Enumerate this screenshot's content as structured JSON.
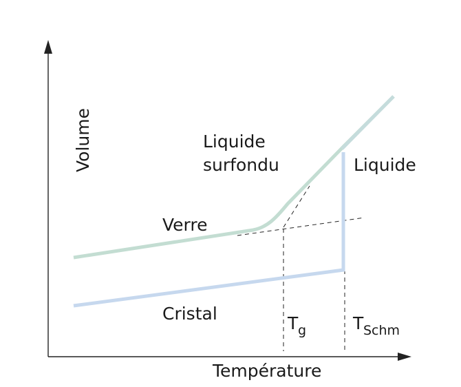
{
  "diagram": {
    "axes": {
      "y_label": "Volume",
      "x_label": "Température"
    },
    "regions": {
      "supercooled_line1": "Liquide",
      "supercooled_line2": "surfondu",
      "liquid": "Liquide",
      "glass": "Verre",
      "crystal": "Cristal"
    },
    "temperatures": {
      "glass_transition_main": "T",
      "glass_transition_sub": "g",
      "melting_main": "T",
      "melting_sub": "Schm"
    },
    "colors": {
      "glass_curve": "#c3ddd2",
      "crystal_curve": "#c6d8ee",
      "liquid_curve": "#c5dcdc",
      "axis": "#222222",
      "guide_lines": "#222222"
    }
  }
}
